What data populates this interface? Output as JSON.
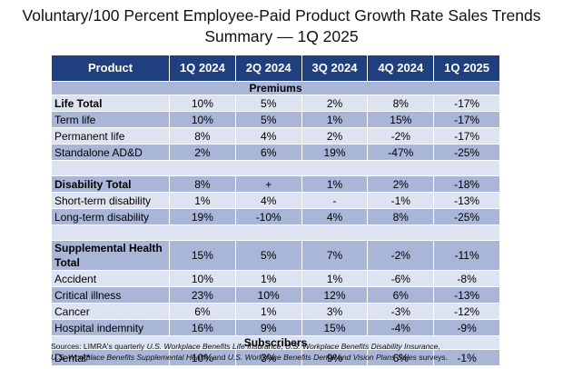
{
  "title": "Voluntary/100 Percent Employee-Paid Product Growth Rate Sales Trends Summary — 1Q 2025",
  "table": {
    "headers": [
      "Product",
      "1Q 2024",
      "2Q 2024",
      "3Q 2024",
      "4Q 2024",
      "1Q 2025"
    ],
    "sections": {
      "premiums": "Premiums",
      "subscribers": "Subscribers"
    },
    "rows": {
      "life_total": [
        "Life Total",
        "10%",
        "5%",
        "2%",
        "8%",
        "-17%"
      ],
      "term_life": [
        "Term life",
        "10%",
        "5%",
        "1%",
        "15%",
        "-17%"
      ],
      "permanent_life": [
        "Permanent life",
        "8%",
        "4%",
        "2%",
        "-2%",
        "-17%"
      ],
      "standalone_add": [
        "Standalone AD&D",
        "2%",
        "6%",
        "19%",
        "-47%",
        "-25%"
      ],
      "disability_total": [
        "Disability Total",
        "8%",
        "+",
        "1%",
        "2%",
        "-18%"
      ],
      "short_term": [
        "Short-term disability",
        "1%",
        "4%",
        "-",
        "-1%",
        "-13%"
      ],
      "long_term": [
        "Long-term disability",
        "19%",
        "-10%",
        "4%",
        "8%",
        "-25%"
      ],
      "supp_health_total": [
        "Supplemental Health Total",
        "15%",
        "5%",
        "7%",
        "-2%",
        "-11%"
      ],
      "accident": [
        "Accident",
        "10%",
        "1%",
        "1%",
        "-6%",
        "-8%"
      ],
      "critical_illness": [
        "Critical illness",
        "23%",
        "10%",
        "12%",
        "6%",
        "-13%"
      ],
      "cancer": [
        "Cancer",
        "6%",
        "1%",
        "3%",
        "-3%",
        "-12%"
      ],
      "hospital_indemnity": [
        "Hospital indemnity",
        "16%",
        "9%",
        "15%",
        "-4%",
        "-9%"
      ],
      "dental": [
        "Dental*",
        "10%",
        "3%",
        "9%",
        "6%",
        "-1%"
      ]
    }
  },
  "sources": {
    "p1": "Sources: LIMRA's quarterly ",
    "i1": "U.S. Workplace Benefits Life Insurance",
    "p2": ", ",
    "i2": "U.S. Workplace Benefits Disability Insurance",
    "p3": ",",
    "i3": "U.S. Workplace Benefits Supplemental Health",
    "p4": ", and ",
    "i4": "U.S. Workplace Benefits Dental and Vision Plans Sales",
    "p5": " surveys."
  }
}
